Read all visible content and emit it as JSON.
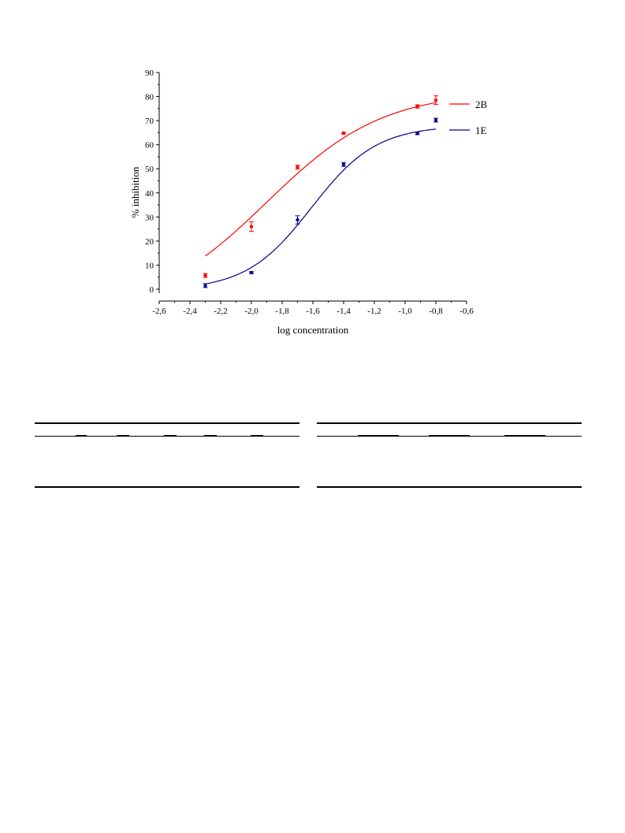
{
  "chart_data": {
    "type": "line",
    "xlabel": "log concentration",
    "ylabel": "% inhibition",
    "xlim": [
      -2.6,
      -0.6
    ],
    "ylim": [
      0,
      90
    ],
    "x_major_ticks": [
      -2.6,
      -2.4,
      -2.2,
      -2.0,
      -1.8,
      -1.6,
      -1.4,
      -1.2,
      -1.0,
      -0.8,
      -0.6
    ],
    "x_tick_labels": [
      "-2,6",
      "-2,4",
      "-2,2",
      "-2,0",
      "-1,8",
      "-1,6",
      "-1,4",
      "-1,2",
      "-1,0",
      "-0,8",
      "-0,6"
    ],
    "y_major_ticks": [
      0,
      10,
      20,
      30,
      40,
      50,
      60,
      70,
      80,
      90
    ],
    "y_tick_labels": [
      "0",
      "10",
      "20",
      "30",
      "40",
      "50",
      "60",
      "70",
      "80",
      "90"
    ],
    "grid": false,
    "legend_position": "right",
    "series": [
      {
        "name": "2B",
        "color": "#ff0000",
        "x": [
          -2.3,
          -2.0,
          -1.7,
          -1.4,
          -0.92,
          -0.8
        ],
        "y": [
          5.7,
          26.0,
          50.7,
          64.8,
          75.9,
          78.5
        ],
        "err": [
          0.8,
          2.0,
          0.8,
          0.4,
          0.7,
          1.8
        ],
        "fit": {
          "bottom": -9.94,
          "top": 82.24,
          "logEC50": -1.9,
          "hill": 1.15
        }
      },
      {
        "name": "1E",
        "color": "#00008b",
        "x": [
          -2.3,
          -2.0,
          -1.7,
          -1.4,
          -0.92,
          -0.8
        ],
        "y": [
          1.5,
          6.9,
          28.8,
          51.8,
          64.7,
          70.2
        ],
        "err": [
          0.8,
          0.4,
          1.7,
          0.8,
          0.5,
          0.8
        ],
        "fit": {
          "bottom": -0.31,
          "top": 67.95,
          "logEC50": -1.61,
          "hill": 2.05
        }
      }
    ]
  }
}
